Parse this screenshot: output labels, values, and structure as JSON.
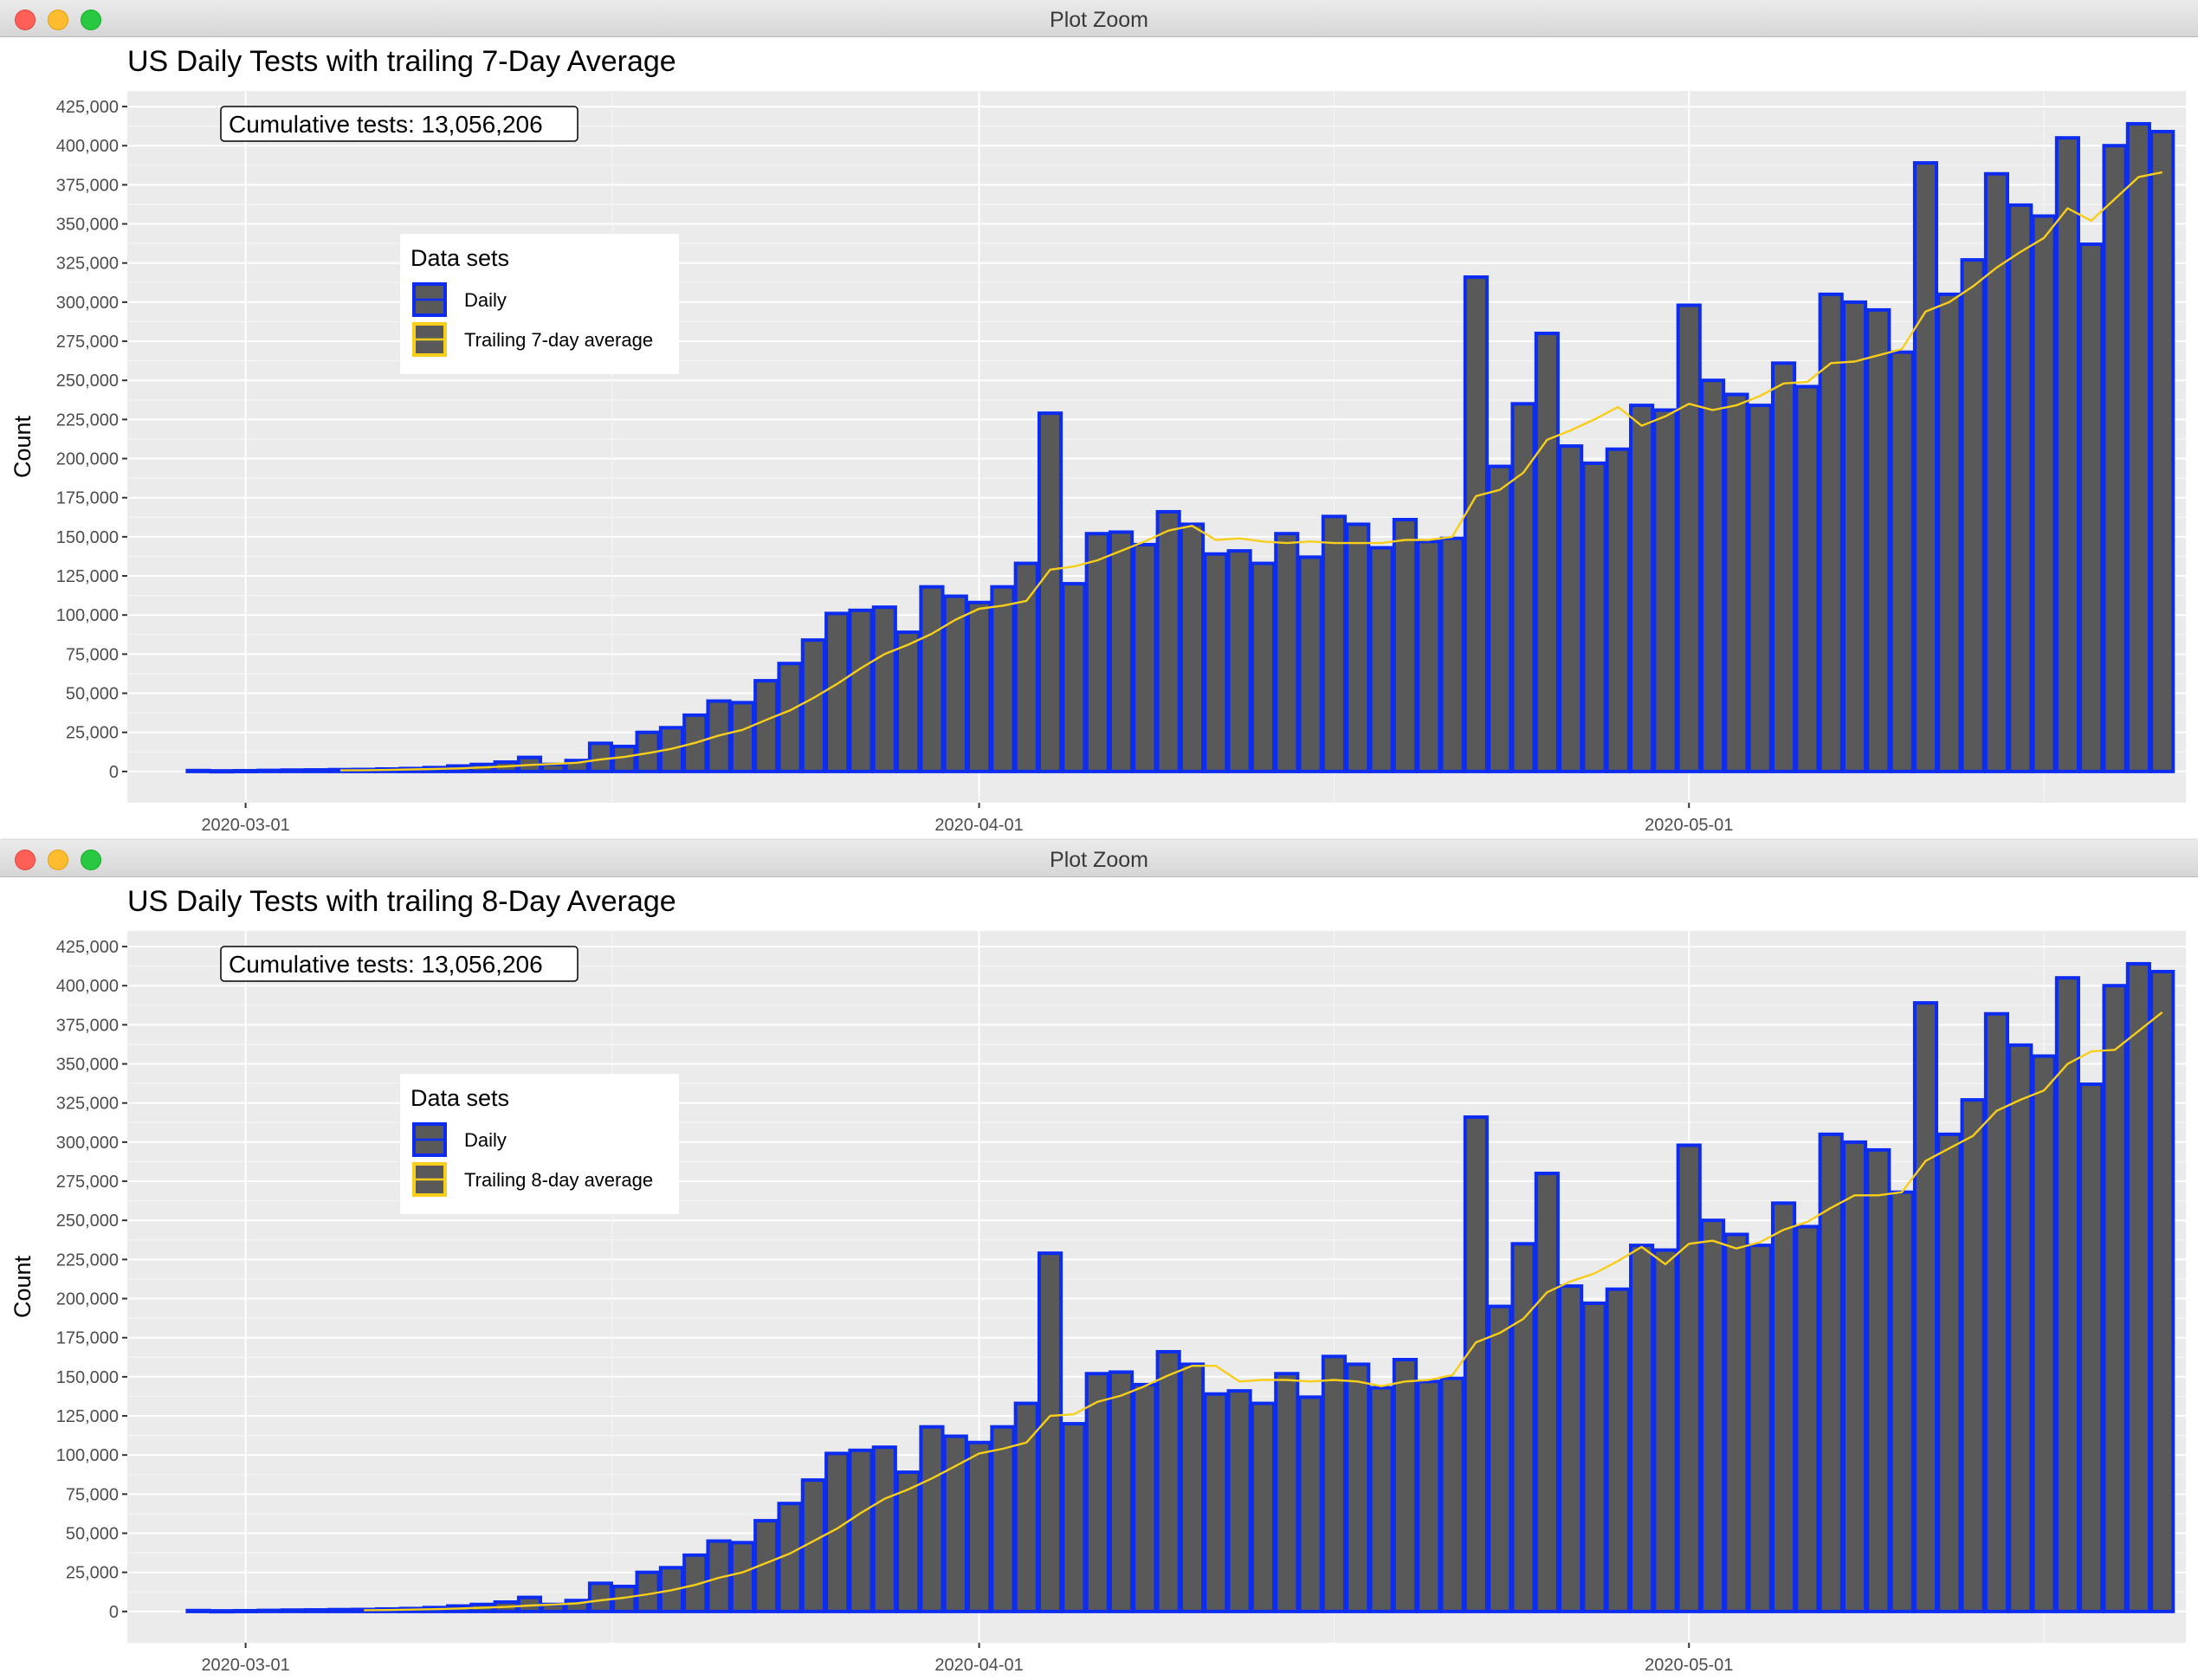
{
  "colors": {
    "panel": "#ebebeb",
    "grid_major": "#ffffff",
    "grid_minor": "#f5f5f5",
    "bar_fill": "#595959",
    "bar_outline": "#0c2cf0",
    "avg_line": "#f7ce1c",
    "text": "#000000",
    "tick_text": "#4d4d4d"
  },
  "windows": [
    {
      "window_title": "Plot Zoom",
      "plot_title": "US Daily Tests with trailing 7-Day Average",
      "annotation": "Cumulative tests: 13,056,206",
      "legend": {
        "title": "Data sets",
        "items": [
          "Daily",
          "Trailing 7-day average"
        ]
      }
    },
    {
      "window_title": "Plot Zoom",
      "plot_title": "US Daily Tests with trailing 8-Day Average",
      "annotation": "Cumulative tests: 13,056,206",
      "legend": {
        "title": "Data sets",
        "items": [
          "Daily",
          "Trailing 8-day average"
        ]
      }
    }
  ],
  "chart_data": [
    {
      "type": "bar",
      "title": "US Daily Tests with trailing 7-Day Average",
      "ylabel": "Count",
      "xlabel": "",
      "x_start": "2020-02-28",
      "ylim": [
        -20000,
        435000
      ],
      "xlim": [
        "2020-02-25",
        "2020-05-22"
      ],
      "y_ticks": [
        0,
        25000,
        50000,
        75000,
        100000,
        125000,
        150000,
        175000,
        200000,
        225000,
        250000,
        275000,
        300000,
        325000,
        350000,
        375000,
        400000,
        425000
      ],
      "y_tick_labels": [
        "0",
        "25,000",
        "50,000",
        "75,000",
        "100,000",
        "125,000",
        "150,000",
        "175,000",
        "200,000",
        "225,000",
        "250,000",
        "275,000",
        "300,000",
        "325,000",
        "350,000",
        "375,000",
        "400,000",
        "425,000"
      ],
      "x_ticks": [
        "2020-03-01",
        "2020-04-01",
        "2020-05-01"
      ],
      "legend_position": "upper-left, inside plot",
      "grid": true,
      "series": [
        {
          "name": "Daily",
          "kind": "bar",
          "values": [
            600,
            400,
            500,
            700,
            900,
            1000,
            1200,
            1300,
            1600,
            1900,
            2500,
            3500,
            4500,
            6000,
            9000,
            4500,
            7000,
            18000,
            16000,
            25000,
            28000,
            36000,
            45000,
            44000,
            58000,
            69000,
            84000,
            101000,
            103000,
            105000,
            89000,
            118000,
            112000,
            108000,
            118000,
            133000,
            229000,
            120000,
            152000,
            153000,
            145000,
            166000,
            158000,
            139000,
            141000,
            133000,
            152000,
            137000,
            163000,
            158000,
            143000,
            161000,
            147000,
            149000,
            316000,
            195000,
            235000,
            280000,
            208000,
            197000,
            206000,
            234000,
            231000,
            298000,
            250000,
            241000,
            234000,
            261000,
            246000,
            305000,
            300000,
            295000,
            268000,
            389000,
            305000,
            327000,
            382000,
            362000,
            355000,
            405000,
            337000,
            400000,
            414000,
            409000
          ]
        },
        {
          "name": "Trailing 7-day average",
          "kind": "line",
          "values": [
            null,
            null,
            null,
            null,
            null,
            null,
            700,
            800,
            1000,
            1300,
            1600,
            2000,
            2600,
            3200,
            4200,
            4800,
            5600,
            7700,
            9300,
            11700,
            14500,
            18300,
            23000,
            26600,
            33000,
            39000,
            47000,
            56000,
            66000,
            75000,
            81000,
            88000,
            97000,
            104000,
            106000,
            109000,
            129000,
            131000,
            135000,
            141000,
            147000,
            154000,
            157000,
            148000,
            149000,
            147000,
            146000,
            147000,
            146000,
            146000,
            146000,
            148000,
            148000,
            150000,
            176000,
            180000,
            191000,
            212000,
            218000,
            225000,
            233000,
            221000,
            227000,
            235000,
            231000,
            234000,
            240000,
            248000,
            249000,
            261000,
            262000,
            266000,
            270000,
            294000,
            300000,
            310000,
            322000,
            332000,
            341000,
            360000,
            352000,
            366000,
            380000,
            383000
          ]
        }
      ]
    },
    {
      "type": "bar",
      "title": "US Daily Tests with trailing 8-Day Average",
      "ylabel": "Count",
      "xlabel": "",
      "x_start": "2020-02-28",
      "ylim": [
        -20000,
        435000
      ],
      "xlim": [
        "2020-02-25",
        "2020-05-22"
      ],
      "y_ticks": [
        0,
        25000,
        50000,
        75000,
        100000,
        125000,
        150000,
        175000,
        200000,
        225000,
        250000,
        275000,
        300000,
        325000,
        350000,
        375000,
        400000,
        425000
      ],
      "y_tick_labels": [
        "0",
        "25,000",
        "50,000",
        "75,000",
        "100,000",
        "125,000",
        "150,000",
        "175,000",
        "200,000",
        "225,000",
        "250,000",
        "275,000",
        "300,000",
        "325,000",
        "350,000",
        "375,000",
        "400,000",
        "425,000"
      ],
      "x_ticks": [
        "2020-03-01",
        "2020-04-01",
        "2020-05-01"
      ],
      "legend_position": "upper-left, inside plot",
      "grid": true,
      "series": [
        {
          "name": "Daily",
          "kind": "bar",
          "values": [
            600,
            400,
            500,
            700,
            900,
            1000,
            1200,
            1300,
            1600,
            1900,
            2500,
            3500,
            4500,
            6000,
            9000,
            4500,
            7000,
            18000,
            16000,
            25000,
            28000,
            36000,
            45000,
            44000,
            58000,
            69000,
            84000,
            101000,
            103000,
            105000,
            89000,
            118000,
            112000,
            108000,
            118000,
            133000,
            229000,
            120000,
            152000,
            153000,
            145000,
            166000,
            158000,
            139000,
            141000,
            133000,
            152000,
            137000,
            163000,
            158000,
            143000,
            161000,
            147000,
            149000,
            316000,
            195000,
            235000,
            280000,
            208000,
            197000,
            206000,
            234000,
            231000,
            298000,
            250000,
            241000,
            234000,
            261000,
            246000,
            305000,
            300000,
            295000,
            268000,
            389000,
            305000,
            327000,
            382000,
            362000,
            355000,
            405000,
            337000,
            400000,
            414000,
            409000
          ]
        },
        {
          "name": "Trailing 8-day average",
          "kind": "line",
          "values": [
            null,
            null,
            null,
            null,
            null,
            null,
            null,
            800,
            900,
            1200,
            1500,
            1900,
            2400,
            2900,
            3800,
            4400,
            5200,
            7100,
            8800,
            11000,
            13600,
            17000,
            21500,
            25000,
            31000,
            37000,
            45000,
            53000,
            63000,
            72000,
            78000,
            85000,
            93000,
            101000,
            104000,
            108000,
            125000,
            126000,
            134000,
            138000,
            144000,
            151000,
            157000,
            157000,
            147000,
            148000,
            148000,
            147000,
            148000,
            147000,
            144000,
            147000,
            148000,
            151000,
            172000,
            178000,
            187000,
            204000,
            211000,
            216000,
            224000,
            233000,
            222000,
            235000,
            237000,
            232000,
            236000,
            244000,
            249000,
            258000,
            266000,
            266000,
            268000,
            288000,
            296000,
            304000,
            320000,
            327000,
            333000,
            350000,
            358000,
            359000,
            371000,
            383000
          ]
        }
      ]
    }
  ]
}
